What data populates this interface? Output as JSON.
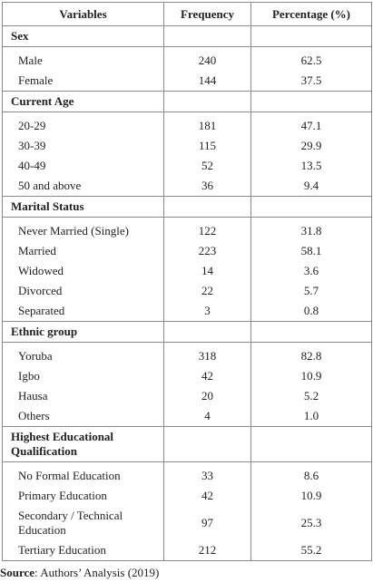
{
  "table": {
    "headers": [
      "Variables",
      "Frequency",
      "Percentage (%)"
    ],
    "sections": [
      {
        "title": "Sex",
        "rows": [
          {
            "label": "Male",
            "frequency": "240",
            "percentage": "62.5"
          },
          {
            "label": "Female",
            "frequency": "144",
            "percentage": "37.5"
          }
        ]
      },
      {
        "title": "Current Age",
        "rows": [
          {
            "label": "20-29",
            "frequency": "181",
            "percentage": "47.1"
          },
          {
            "label": "30-39",
            "frequency": "115",
            "percentage": "29.9"
          },
          {
            "label": "40-49",
            "frequency": "52",
            "percentage": "13.5"
          },
          {
            "label": "50 and above",
            "frequency": "36",
            "percentage": "9.4"
          }
        ]
      },
      {
        "title": "Marital Status",
        "rows": [
          {
            "label": "Never Married (Single)",
            "frequency": "122",
            "percentage": "31.8"
          },
          {
            "label": "Married",
            "frequency": "223",
            "percentage": "58.1"
          },
          {
            "label": "Widowed",
            "frequency": "14",
            "percentage": "3.6"
          },
          {
            "label": "Divorced",
            "frequency": "22",
            "percentage": "5.7"
          },
          {
            "label": "Separated",
            "frequency": "3",
            "percentage": "0.8"
          }
        ]
      },
      {
        "title": "Ethnic group",
        "rows": [
          {
            "label": "Yoruba",
            "frequency": "318",
            "percentage": "82.8"
          },
          {
            "label": "Igbo",
            "frequency": "42",
            "percentage": "10.9"
          },
          {
            "label": "Hausa",
            "frequency": "20",
            "percentage": "5.2"
          },
          {
            "label": "Others",
            "frequency": "4",
            "percentage": "1.0"
          }
        ]
      },
      {
        "title": "Highest Educational Qualification",
        "rows": [
          {
            "label": "No Formal Education",
            "frequency": "33",
            "percentage": "8.6"
          },
          {
            "label": "Primary Education",
            "frequency": "42",
            "percentage": "10.9"
          },
          {
            "label": "Secondary / Technical Education",
            "frequency": "97",
            "percentage": "25.3"
          },
          {
            "label": "Tertiary Education",
            "frequency": "212",
            "percentage": "55.2"
          }
        ]
      }
    ]
  },
  "source": {
    "label": "Source",
    "text": ": Authors’ Analysis (2019)"
  }
}
